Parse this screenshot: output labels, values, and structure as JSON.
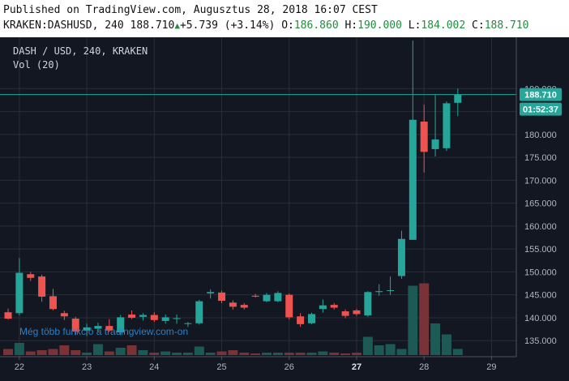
{
  "header": {
    "published": "Published on TradingView.com, Augusztus 28, 2018 16:07 CEST",
    "symbol": "KRAKEN:DASHUSD, 240",
    "last": "188.710",
    "change": "+5.739 (+3.14%)",
    "o_label": "O:",
    "o_value": "186.860",
    "h_label": "H:",
    "h_value": "190.000",
    "l_label": "L:",
    "l_value": "184.002",
    "c_label": "C:",
    "c_value": "188.710"
  },
  "chart_data": {
    "type": "candlestick",
    "title": "DASH / USD, 240, KRAKEN",
    "volume_label": "Vol (20)",
    "watermark": "Még több funkció a tradingview.com-on",
    "colors": {
      "background": "#131722",
      "up": "#26a69a",
      "down": "#ef5350",
      "grid": "#2a2e39",
      "axis_text": "#b2b5be"
    },
    "ylim": [
      131.5,
      201.2
    ],
    "y_ticks": [
      135,
      140,
      145,
      150,
      155,
      160,
      165,
      170,
      175,
      180,
      185,
      190
    ],
    "y_tick_labels": [
      "135.000",
      "140.000",
      "145.000",
      "150.000",
      "155.000",
      "160.000",
      "165.000",
      "170.000",
      "175.000",
      "180.000",
      "185.000",
      "190.000"
    ],
    "x_ticks": [
      {
        "label": "22",
        "index": 1,
        "bold": false
      },
      {
        "label": "23",
        "index": 7,
        "bold": false
      },
      {
        "label": "24",
        "index": 13,
        "bold": false
      },
      {
        "label": "25",
        "index": 19,
        "bold": false
      },
      {
        "label": "26",
        "index": 25,
        "bold": false
      },
      {
        "label": "27",
        "index": 31,
        "bold": true
      },
      {
        "label": "28",
        "index": 37,
        "bold": false
      },
      {
        "label": "29",
        "index": 43,
        "bold": false
      }
    ],
    "last_price": 188.71,
    "last_price_label": "188.710",
    "countdown": "01:52:37",
    "candles": [
      {
        "o": 141.2,
        "h": 142.0,
        "l": 139.6,
        "c": 139.8,
        "v": 0.05
      },
      {
        "o": 141.0,
        "h": 153.0,
        "l": 140.5,
        "c": 149.8,
        "v": 0.1
      },
      {
        "o": 149.5,
        "h": 150.0,
        "l": 148.0,
        "c": 148.7,
        "v": 0.03
      },
      {
        "o": 149.0,
        "h": 149.4,
        "l": 143.5,
        "c": 144.6,
        "v": 0.04
      },
      {
        "o": 144.7,
        "h": 146.3,
        "l": 141.6,
        "c": 141.9,
        "v": 0.05
      },
      {
        "o": 141.0,
        "h": 141.5,
        "l": 139.5,
        "c": 140.3,
        "v": 0.08
      },
      {
        "o": 139.8,
        "h": 140.2,
        "l": 136.2,
        "c": 137.0,
        "v": 0.04
      },
      {
        "o": 137.2,
        "h": 138.7,
        "l": 136.0,
        "c": 137.9,
        "v": 0.02
      },
      {
        "o": 137.6,
        "h": 138.9,
        "l": 136.8,
        "c": 138.2,
        "v": 0.09
      },
      {
        "o": 138.2,
        "h": 139.7,
        "l": 136.9,
        "c": 137.2,
        "v": 0.03
      },
      {
        "o": 136.8,
        "h": 140.6,
        "l": 136.2,
        "c": 140.1,
        "v": 0.06
      },
      {
        "o": 140.7,
        "h": 141.6,
        "l": 139.7,
        "c": 140.0,
        "v": 0.08
      },
      {
        "o": 140.2,
        "h": 141.0,
        "l": 139.4,
        "c": 140.6,
        "v": 0.04
      },
      {
        "o": 140.6,
        "h": 141.2,
        "l": 139.1,
        "c": 139.5,
        "v": 0.02
      },
      {
        "o": 139.3,
        "h": 140.7,
        "l": 138.7,
        "c": 140.1,
        "v": 0.03
      },
      {
        "o": 139.8,
        "h": 140.7,
        "l": 138.7,
        "c": 139.9,
        "v": 0.02
      },
      {
        "o": 138.7,
        "h": 139.1,
        "l": 138.0,
        "c": 138.8,
        "v": 0.02
      },
      {
        "o": 138.8,
        "h": 143.9,
        "l": 138.5,
        "c": 143.6,
        "v": 0.07
      },
      {
        "o": 145.3,
        "h": 146.2,
        "l": 144.2,
        "c": 145.6,
        "v": 0.02
      },
      {
        "o": 145.5,
        "h": 145.9,
        "l": 143.2,
        "c": 143.7,
        "v": 0.03
      },
      {
        "o": 143.3,
        "h": 143.8,
        "l": 141.8,
        "c": 142.4,
        "v": 0.04
      },
      {
        "o": 142.8,
        "h": 143.2,
        "l": 141.8,
        "c": 142.2,
        "v": 0.02
      },
      {
        "o": 144.8,
        "h": 145.2,
        "l": 144.4,
        "c": 144.6,
        "v": 0.01
      },
      {
        "o": 143.6,
        "h": 145.4,
        "l": 143.4,
        "c": 145.0,
        "v": 0.02
      },
      {
        "o": 143.6,
        "h": 145.8,
        "l": 143.4,
        "c": 145.4,
        "v": 0.02
      },
      {
        "o": 145.0,
        "h": 145.3,
        "l": 139.6,
        "c": 140.1,
        "v": 0.02
      },
      {
        "o": 140.3,
        "h": 141.0,
        "l": 138.0,
        "c": 138.6,
        "v": 0.02
      },
      {
        "o": 138.8,
        "h": 141.1,
        "l": 138.6,
        "c": 140.8,
        "v": 0.02
      },
      {
        "o": 141.9,
        "h": 144.0,
        "l": 141.1,
        "c": 142.7,
        "v": 0.03
      },
      {
        "o": 142.8,
        "h": 143.2,
        "l": 141.8,
        "c": 142.2,
        "v": 0.02
      },
      {
        "o": 141.4,
        "h": 141.8,
        "l": 139.9,
        "c": 140.4,
        "v": 0.01
      },
      {
        "o": 141.6,
        "h": 141.9,
        "l": 140.4,
        "c": 140.8,
        "v": 0.02
      },
      {
        "o": 140.5,
        "h": 145.8,
        "l": 140.2,
        "c": 145.6,
        "v": 0.15
      },
      {
        "o": 145.6,
        "h": 147.3,
        "l": 144.8,
        "c": 145.8,
        "v": 0.08
      },
      {
        "o": 145.9,
        "h": 149.0,
        "l": 145.0,
        "c": 146.0,
        "v": 0.09
      },
      {
        "o": 149.1,
        "h": 159.0,
        "l": 148.5,
        "c": 157.2,
        "v": 0.05
      },
      {
        "o": 157.0,
        "h": 200.5,
        "l": 157.0,
        "c": 183.2,
        "v": 0.57
      },
      {
        "o": 182.8,
        "h": 186.5,
        "l": 171.7,
        "c": 176.2,
        "v": 0.59
      },
      {
        "o": 176.8,
        "h": 188.6,
        "l": 175.2,
        "c": 178.9,
        "v": 0.26
      },
      {
        "o": 177.0,
        "h": 187.2,
        "l": 176.4,
        "c": 186.8,
        "v": 0.17
      },
      {
        "o": 186.9,
        "h": 190.0,
        "l": 184.0,
        "c": 188.7,
        "v": 0.05
      }
    ]
  }
}
